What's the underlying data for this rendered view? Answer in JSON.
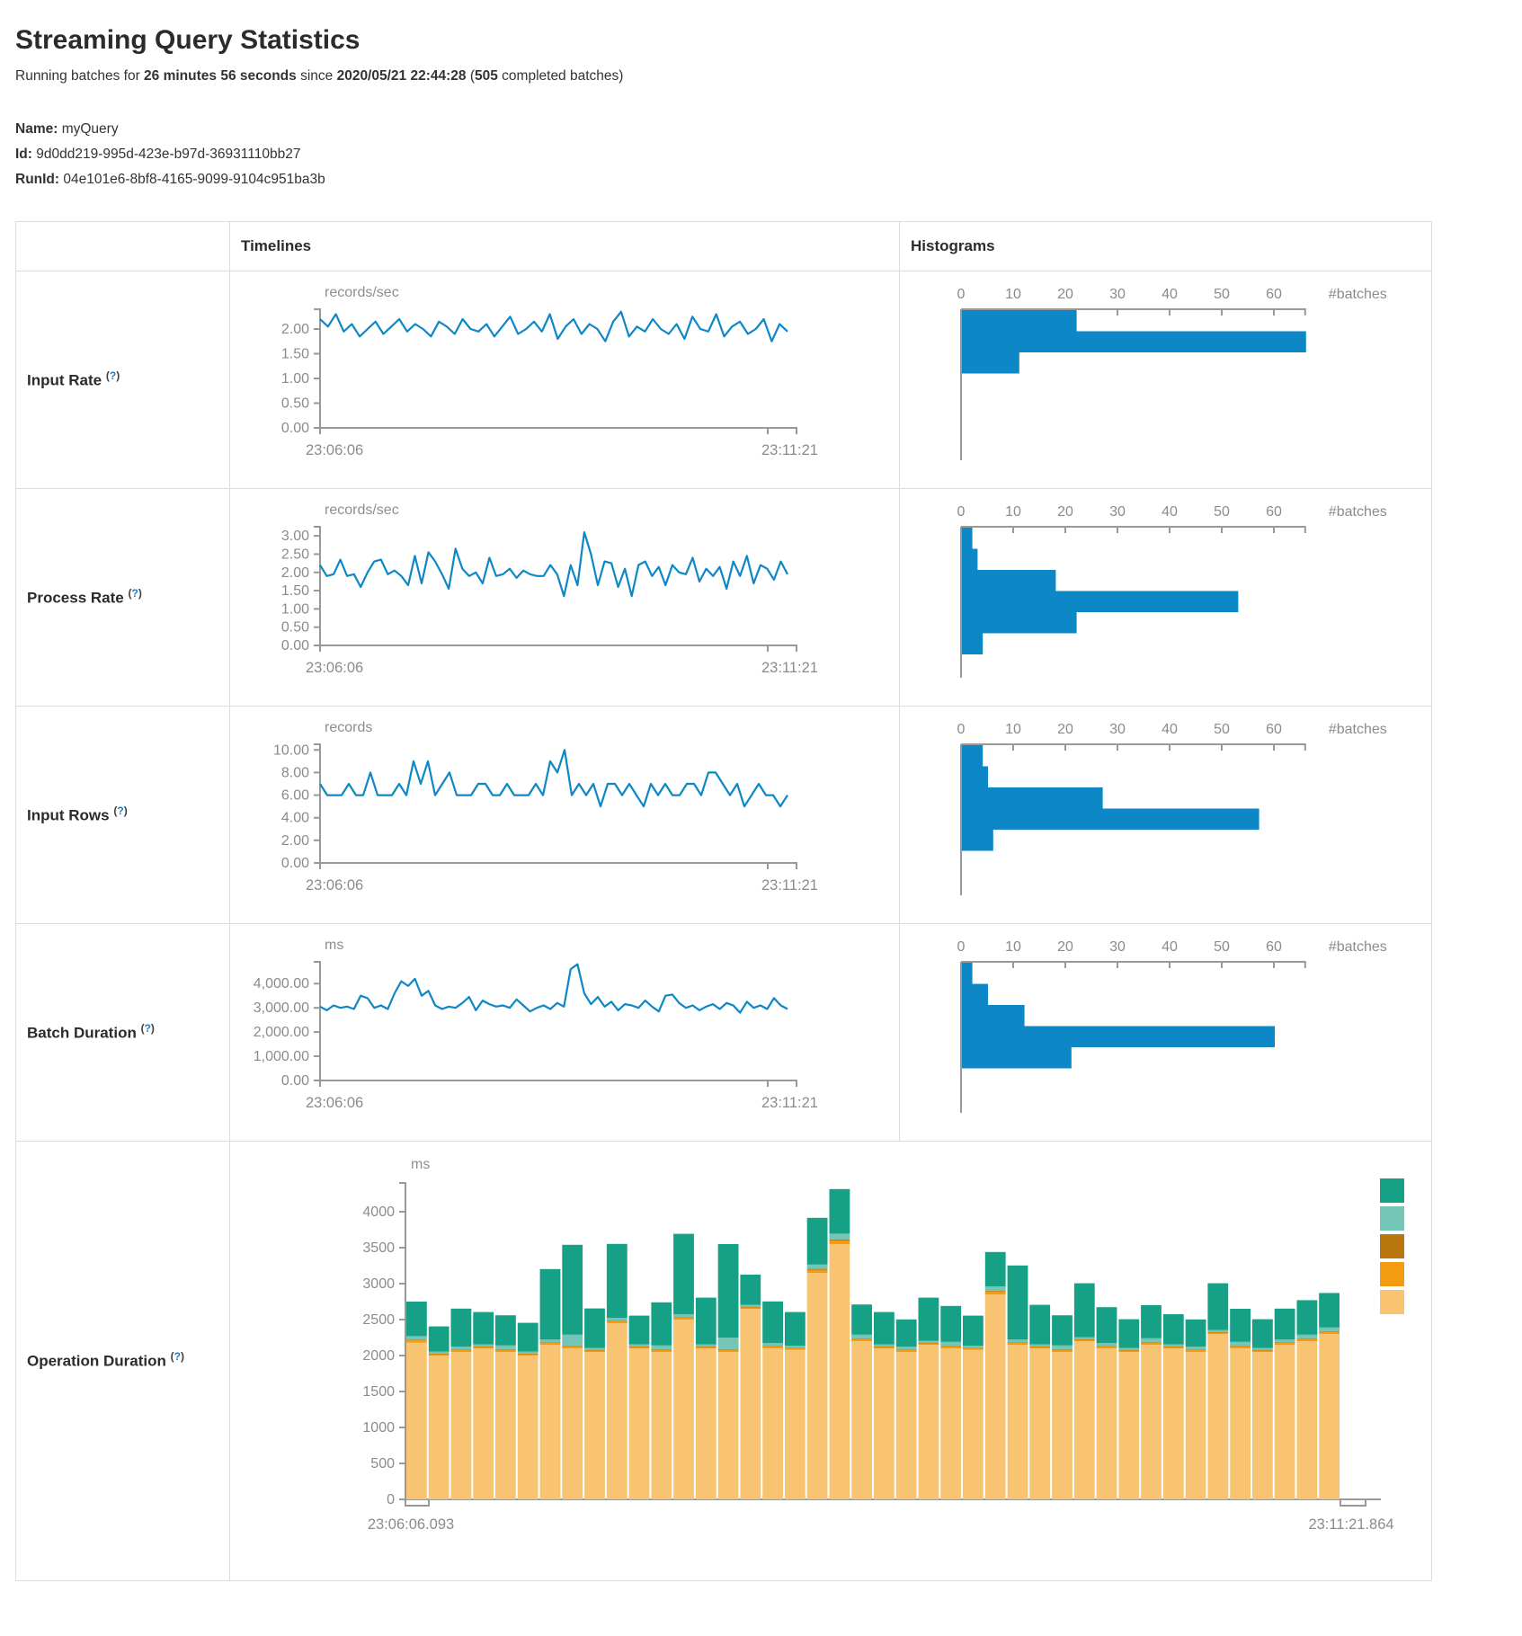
{
  "page": {
    "title": "Streaming Query Statistics",
    "subtitle": {
      "p1": "Running batches for ",
      "duration": "26 minutes 56 seconds",
      "p2": " since ",
      "start_time": "2020/05/21 22:44:28",
      "p3": " (",
      "batch_count": "505",
      "p4": " completed batches)"
    },
    "query": {
      "name_label": "Name:",
      "name": "myQuery",
      "id_label": "Id:",
      "id": "9d0dd219-995d-423e-b97d-36931110bb27",
      "runid_label": "RunId:",
      "runid": "04e101e6-8bf8-4165-9099-9104c951ba3b"
    }
  },
  "table": {
    "headers": {
      "timelines": "Timelines",
      "histograms": "Histograms"
    },
    "help": {
      "open": "(",
      "mark": "?",
      "close": ")"
    },
    "rows": [
      {
        "label": "Input Rate"
      },
      {
        "label": "Process Rate"
      },
      {
        "label": "Input Rows"
      },
      {
        "label": "Batch Duration"
      },
      {
        "label": "Operation Duration"
      }
    ]
  },
  "colors": {
    "line_blue": "#0d87c6",
    "axis_gray": "#999999",
    "tick_text": "#8b8b8b"
  },
  "chart_data": [
    {
      "id": "input-rate-timeline",
      "type": "line",
      "ylabel": "records/sec",
      "x_start_label": "23:06:06",
      "x_end_label": "23:11:21",
      "ylim": [
        0,
        2.4
      ],
      "yticks": [
        2.0,
        1.5,
        1.0,
        0.5,
        0
      ],
      "ytick_labels": [
        "2.00",
        "1.50",
        "1.00",
        "0.50",
        "0.00"
      ],
      "color": "#0d87c6",
      "values": [
        2.2,
        2.05,
        2.3,
        1.95,
        2.1,
        1.85,
        2.0,
        2.15,
        1.9,
        2.05,
        2.2,
        1.95,
        2.1,
        2.0,
        1.85,
        2.15,
        2.05,
        1.9,
        2.2,
        2.0,
        1.95,
        2.1,
        1.85,
        2.05,
        2.25,
        1.9,
        2.0,
        2.15,
        1.95,
        2.3,
        1.8,
        2.05,
        2.2,
        1.9,
        2.1,
        2.0,
        1.75,
        2.15,
        2.35,
        1.85,
        2.05,
        1.95,
        2.2,
        2.0,
        1.9,
        2.1,
        1.8,
        2.25,
        2.0,
        1.95,
        2.3,
        1.85,
        2.05,
        2.15,
        1.9,
        2.0,
        2.2,
        1.75,
        2.1,
        1.95
      ]
    },
    {
      "id": "input-rate-histogram",
      "type": "bar",
      "orientation": "horizontal",
      "xlabel": "#batches",
      "xlim": [
        0,
        66
      ],
      "xticks": [
        0,
        10,
        20,
        30,
        40,
        50,
        60
      ],
      "color": "#0d87c6",
      "values": [
        22,
        66,
        11
      ]
    },
    {
      "id": "process-rate-timeline",
      "type": "line",
      "ylabel": "records/sec",
      "x_start_label": "23:06:06",
      "x_end_label": "23:11:21",
      "ylim": [
        0,
        3.25
      ],
      "yticks": [
        3.0,
        2.5,
        2.0,
        1.5,
        1.0,
        0.5,
        0
      ],
      "ytick_labels": [
        "3.00",
        "2.50",
        "2.00",
        "1.50",
        "1.00",
        "0.50",
        "0.00"
      ],
      "color": "#0d87c6",
      "values": [
        2.2,
        1.9,
        1.95,
        2.35,
        1.9,
        1.95,
        1.6,
        2.0,
        2.3,
        2.35,
        1.95,
        2.05,
        1.9,
        1.65,
        2.45,
        1.7,
        2.55,
        2.3,
        1.95,
        1.55,
        2.65,
        2.1,
        1.9,
        2.0,
        1.7,
        2.4,
        1.9,
        1.95,
        2.1,
        1.85,
        2.05,
        1.95,
        1.9,
        1.9,
        2.2,
        1.95,
        1.35,
        2.2,
        1.65,
        3.1,
        2.5,
        1.65,
        2.3,
        2.25,
        1.6,
        2.1,
        1.35,
        2.2,
        2.3,
        1.9,
        2.15,
        1.65,
        2.2,
        2.0,
        1.95,
        2.4,
        1.75,
        2.1,
        1.9,
        2.15,
        1.55,
        2.3,
        1.9,
        2.45,
        1.7,
        2.2,
        2.1,
        1.8,
        2.3,
        1.95
      ]
    },
    {
      "id": "process-rate-histogram",
      "type": "bar",
      "orientation": "horizontal",
      "xlabel": "#batches",
      "xlim": [
        0,
        66
      ],
      "xticks": [
        0,
        10,
        20,
        30,
        40,
        50,
        60
      ],
      "color": "#0d87c6",
      "values": [
        2,
        3,
        18,
        53,
        22,
        4
      ]
    },
    {
      "id": "input-rows-timeline",
      "type": "line",
      "ylabel": "records",
      "x_start_label": "23:06:06",
      "x_end_label": "23:11:21",
      "ylim": [
        0,
        10.5
      ],
      "yticks": [
        10,
        8,
        6,
        4,
        2,
        0
      ],
      "ytick_labels": [
        "10.00",
        "8.00",
        "6.00",
        "4.00",
        "2.00",
        "0.00"
      ],
      "color": "#0d87c6",
      "values": [
        7,
        6,
        6,
        6,
        7,
        6,
        6,
        8,
        6,
        6,
        6,
        7,
        6,
        9,
        7,
        9,
        6,
        7,
        8,
        6,
        6,
        6,
        7,
        7,
        6,
        6,
        7,
        6,
        6,
        6,
        7,
        6,
        9,
        8,
        10,
        6,
        7,
        6,
        7,
        5,
        7,
        7,
        6,
        7,
        6,
        5,
        7,
        6,
        7,
        6,
        6,
        7,
        7,
        6,
        8,
        8,
        7,
        6,
        7,
        5,
        6,
        7,
        6,
        6,
        5,
        6
      ]
    },
    {
      "id": "input-rows-histogram",
      "type": "bar",
      "orientation": "horizontal",
      "xlabel": "#batches",
      "xlim": [
        0,
        66
      ],
      "xticks": [
        0,
        10,
        20,
        30,
        40,
        50,
        60
      ],
      "color": "#0d87c6",
      "values": [
        4,
        5,
        27,
        57,
        6
      ]
    },
    {
      "id": "batch-duration-timeline",
      "type": "line",
      "ylabel": "ms",
      "x_start_label": "23:06:06",
      "x_end_label": "23:11:21",
      "ylim": [
        0,
        4900
      ],
      "yticks": [
        4000,
        3000,
        2000,
        1000,
        0
      ],
      "ytick_labels": [
        "4,000.00",
        "3,000.00",
        "2,000.00",
        "1,000.00",
        "0.00"
      ],
      "color": "#0d87c6",
      "values": [
        3050,
        2900,
        3100,
        3000,
        3050,
        2950,
        3500,
        3400,
        3000,
        3100,
        2950,
        3600,
        4100,
        3900,
        4200,
        3500,
        3700,
        3100,
        2950,
        3050,
        3000,
        3200,
        3450,
        2900,
        3300,
        3150,
        3050,
        3100,
        3000,
        3350,
        3100,
        2850,
        3000,
        3100,
        2950,
        3200,
        3050,
        4600,
        4800,
        3600,
        3150,
        3450,
        3050,
        3250,
        2900,
        3150,
        3100,
        3000,
        3300,
        3050,
        2850,
        3500,
        3550,
        3200,
        3000,
        3100,
        2900,
        3050,
        3150,
        2950,
        3200,
        3100,
        2800,
        3250,
        3000,
        3100,
        2950,
        3400,
        3100,
        2950
      ]
    },
    {
      "id": "batch-duration-histogram",
      "type": "bar",
      "orientation": "horizontal",
      "xlabel": "#batches",
      "xlim": [
        0,
        66
      ],
      "xticks": [
        0,
        10,
        20,
        30,
        40,
        50,
        60
      ],
      "color": "#0d87c6",
      "values": [
        2,
        5,
        12,
        60,
        21
      ]
    },
    {
      "id": "operation-duration",
      "type": "bar",
      "stacked": true,
      "ylabel": "ms",
      "x_start_label": "23:06:06.093",
      "x_end_label": "23:11:21.864",
      "ylim": [
        0,
        4400
      ],
      "yticks": [
        4000,
        3500,
        3000,
        2500,
        2000,
        1500,
        1000,
        500,
        0
      ],
      "legend_position": "right",
      "stack_bottom_to_top": [
        4,
        3,
        2,
        1,
        0
      ],
      "series": [
        {
          "name": "operation-color-1",
          "color": "#16A085",
          "values": [
            480,
            350,
            530,
            450,
            420,
            400,
            980,
            1250,
            550,
            1030,
            400,
            600,
            1120,
            650,
            1300,
            420,
            580,
            470,
            650,
            620,
            420,
            450,
            380,
            600,
            500,
            420,
            480,
            1030,
            550,
            420,
            750,
            500,
            400,
            460,
            420,
            380,
            650,
            460,
            400,
            430,
            480,
            480
          ]
        },
        {
          "name": "operation-color-2",
          "color": "#73C6B6",
          "values": [
            50,
            30,
            40,
            30,
            50,
            30,
            40,
            150,
            30,
            40,
            30,
            50,
            40,
            30,
            160,
            30,
            40,
            30,
            60,
            80,
            50,
            30,
            40,
            30,
            50,
            30,
            60,
            40,
            30,
            50,
            30,
            40,
            30,
            50,
            30,
            40,
            30,
            50,
            30,
            40,
            50,
            50
          ]
        },
        {
          "name": "operation-color-3",
          "color": "#B9770E",
          "values": [
            10,
            5,
            8,
            5,
            10,
            5,
            8,
            10,
            5,
            8,
            5,
            10,
            8,
            5,
            10,
            5,
            8,
            5,
            15,
            15,
            10,
            5,
            8,
            5,
            10,
            5,
            10,
            8,
            5,
            10,
            5,
            8,
            5,
            10,
            5,
            8,
            5,
            10,
            5,
            8,
            10,
            10
          ]
        },
        {
          "name": "operation-color-4",
          "color": "#F39C12",
          "values": [
            30,
            20,
            25,
            20,
            30,
            20,
            25,
            30,
            20,
            25,
            20,
            30,
            25,
            20,
            30,
            20,
            25,
            20,
            40,
            50,
            30,
            20,
            25,
            20,
            30,
            20,
            40,
            25,
            20,
            30,
            20,
            25,
            20,
            30,
            20,
            25,
            20,
            30,
            20,
            25,
            30,
            30
          ]
        },
        {
          "name": "operation-color-5",
          "color": "#F8C471",
          "values": [
            2180,
            2000,
            2050,
            2100,
            2050,
            2000,
            2150,
            2100,
            2050,
            2450,
            2100,
            2050,
            2500,
            2100,
            2050,
            2650,
            2100,
            2080,
            3150,
            3550,
            2200,
            2100,
            2050,
            2150,
            2100,
            2080,
            2850,
            2150,
            2100,
            2050,
            2200,
            2100,
            2050,
            2150,
            2100,
            2050,
            2300,
            2100,
            2050,
            2150,
            2200,
            2300
          ]
        }
      ]
    }
  ]
}
